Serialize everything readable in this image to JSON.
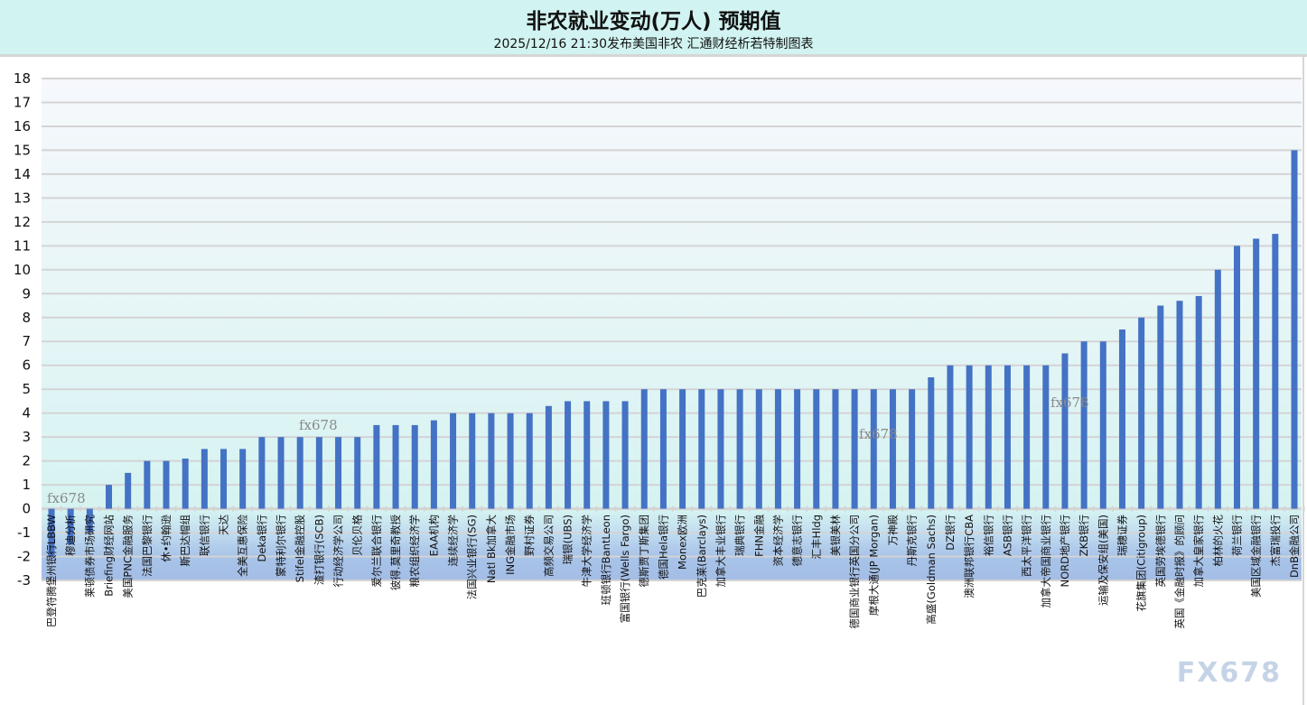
{
  "chart_data": {
    "type": "bar",
    "title": "非农就业变动(万人) 预期值",
    "subtitle": "2025/12/16 21:30发布美国非农 汇通财经析若特制图表",
    "xlabel": "",
    "ylabel": "",
    "ylim": [
      -3,
      18
    ],
    "yticks": [
      -3,
      -2,
      -1,
      0,
      1,
      2,
      3,
      4,
      5,
      6,
      7,
      8,
      9,
      10,
      11,
      12,
      13,
      14,
      15,
      16,
      17,
      18
    ],
    "grid": true,
    "bar_color": "#4472c4",
    "categories": [
      "巴登符腾堡州银行LBBW",
      "穆迪分析",
      "莱顿债券市场研究",
      "Briefing财经网站",
      "美国PNC金融服务",
      "法国巴黎银行",
      "休•约翰逊",
      "斯巴达帽组",
      "联信银行",
      "天达",
      "全美互惠保险",
      "Deka银行",
      "蒙特利尔银行",
      "Stifel金融控股",
      "渣打银行(SCB)",
      "行动经济学公司",
      "贝伦贝格",
      "爱尔兰联合银行",
      "彼得.莫里奇教授",
      "粮农组织经济学",
      "EAA机构",
      "连续经济学",
      "法国兴业银行(SG)",
      "Natl Bk加拿大",
      "ING金融市场",
      "野村证券",
      "高频交易公司",
      "瑞银(UBS)",
      "牛津大学经济学",
      "班顿银行BantLeon",
      "富国银行(Wells Fargo)",
      "德斯贾丁斯集团",
      "德国Hela银行",
      "Monex欧洲",
      "巴克莱(Barclays)",
      "加拿大丰业银行",
      "瑞典银行",
      "FHN金融",
      "资本经济学",
      "德意志银行",
      "汇丰Hldg",
      "美银美林",
      "德国商业银行英国分公司",
      "摩根大通(JP Morgan)",
      "万神殿",
      "丹斯克银行",
      "高盛(Goldman Sachs)",
      "DZ银行",
      "澳洲联邦银行CBA",
      "裕信银行",
      "ASB银行",
      "西太平洋银行",
      "加拿大帝国商业银行",
      "NORD地产银行",
      "ZKB银行",
      "运输及保安组(美国)",
      "瑞穗证券",
      "花旗集团(Citigroup)",
      "英国劳埃德银行",
      "英国《金融时报》的顾问",
      "加拿大皇家银行",
      "柏林的火花",
      "荷兰银行",
      "美国区域金融银行",
      "杰富瑞投行",
      "DnB金融公司"
    ],
    "values": [
      -2,
      -1.5,
      -1,
      1,
      1.5,
      2,
      2,
      2.1,
      2.5,
      2.5,
      2.5,
      3,
      3,
      3,
      3,
      3,
      3,
      3.5,
      3.5,
      3.5,
      3.7,
      4,
      4,
      4,
      4,
      4,
      4.3,
      4.5,
      4.5,
      4.5,
      4.5,
      5,
      5,
      5,
      5,
      5,
      5,
      5,
      5,
      5,
      5,
      5,
      5,
      5,
      5,
      5,
      5.5,
      6,
      6,
      6,
      6,
      6,
      6,
      6.5,
      7,
      7,
      7.5,
      8,
      8.5,
      8.7,
      8.9,
      10,
      11,
      11.3,
      11.5,
      15
    ]
  },
  "watermarks": {
    "small": "fx678",
    "logo": "FX678"
  }
}
